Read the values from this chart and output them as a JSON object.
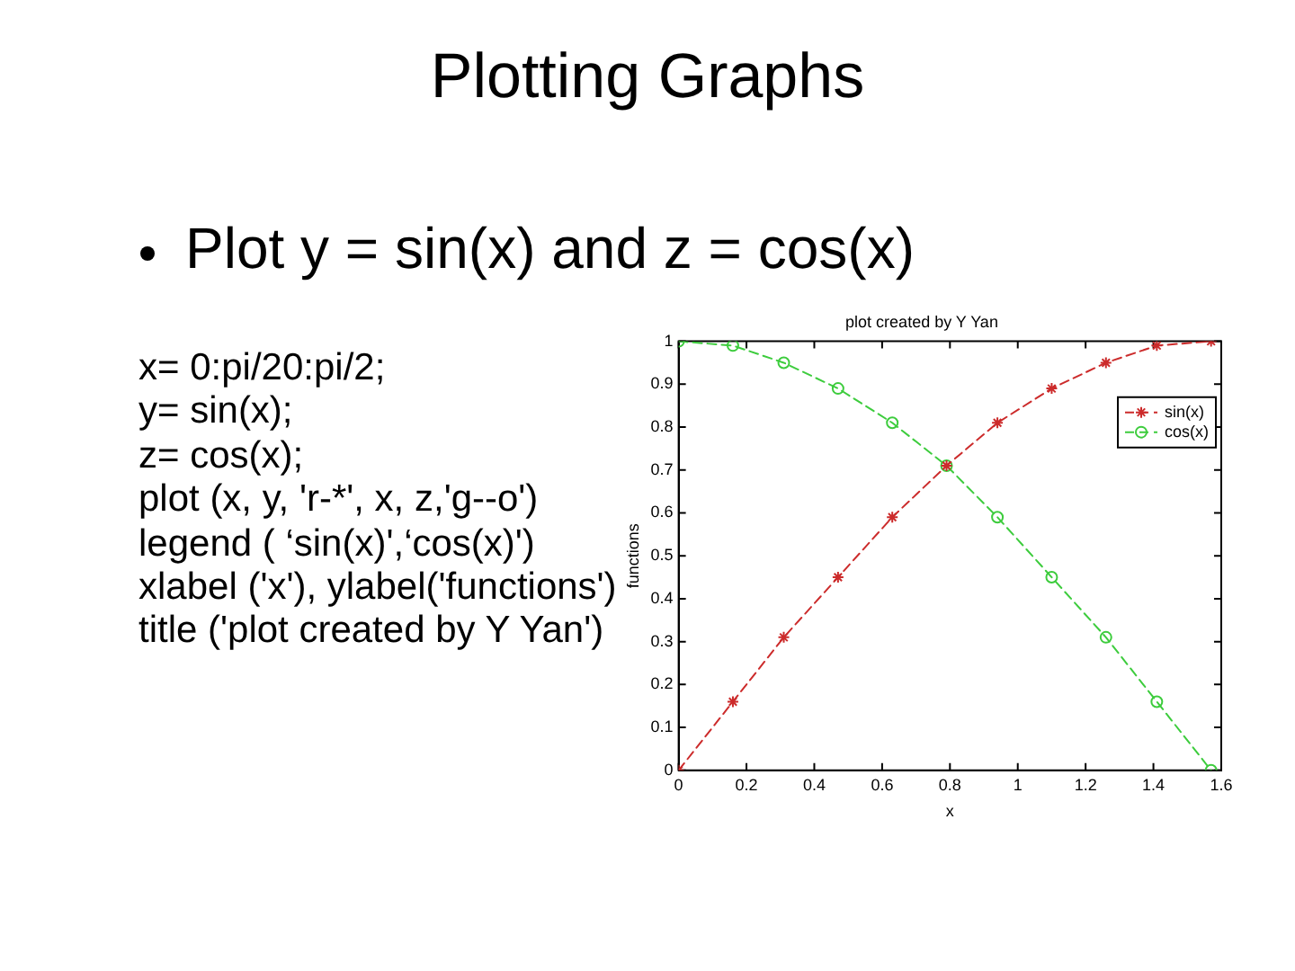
{
  "chart_data": {
    "type": "line",
    "title": "Plotting Graphs",
    "subtitle": "Plot y = sin(x) and z = cos(x)",
    "annotations": [
      "plot created by Y Yan",
      "x= 0:pi/20:pi/2;",
      "y= sin(x);",
      "z= cos(x);",
      "plot (x, y, 'r-*', x, z,'g--o')",
      "legend ( ‘sin(x)',‘cos(x)')",
      "xlabel ('x'), ylabel('functions')",
      "title ('plot created by Y Yan')"
    ],
    "xlabel": "x",
    "ylabel": "functions",
    "x": [
      0,
      0.16,
      0.31,
      0.47,
      0.63,
      0.79,
      0.94,
      1.1,
      1.26,
      1.41,
      1.57
    ],
    "series": [
      {
        "name": "sin(x)",
        "color": "#cc2b2b",
        "marker": "cross",
        "line_style": "dashed",
        "values": [
          0,
          0.16,
          0.31,
          0.45,
          0.59,
          0.71,
          0.81,
          0.89,
          0.95,
          0.99,
          1
        ]
      },
      {
        "name": "cos(x)",
        "color": "#3dcc3d",
        "marker": "circle",
        "line_style": "dashed",
        "values": [
          1,
          0.99,
          0.95,
          0.89,
          0.81,
          0.71,
          0.59,
          0.45,
          0.31,
          0.16,
          0
        ]
      }
    ],
    "xlim": [
      0,
      1.6
    ],
    "xticks": [
      0,
      0.2,
      0.4,
      0.6,
      0.8,
      1,
      1.2,
      1.4,
      1.6
    ],
    "ylim": [
      0,
      1
    ],
    "yticks": [
      0,
      0.1,
      0.2,
      0.3,
      0.4,
      0.5,
      0.6,
      0.7,
      0.8,
      0.9,
      1
    ],
    "legend": "top right"
  }
}
